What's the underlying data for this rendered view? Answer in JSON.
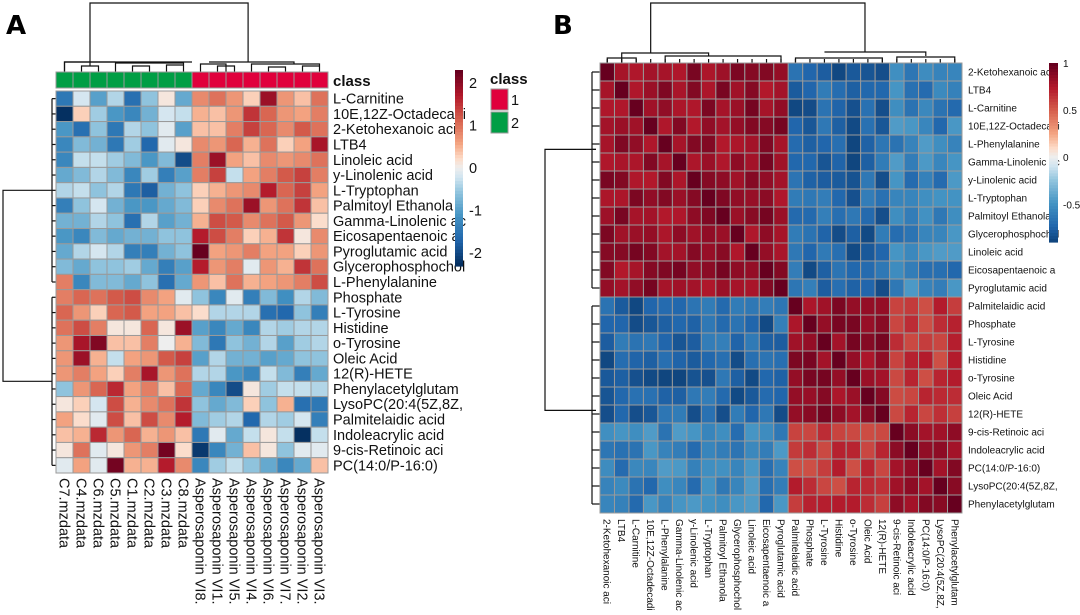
{
  "chart_data": [
    {
      "type": "heatmap",
      "panel": "A",
      "title": "",
      "row_labels": [
        "L-Carnitine",
        "10E,12Z-Octadecadi",
        "2-Ketohexanoic aci",
        "LTB4",
        "Linoleic acid",
        "y-Linolenic acid",
        "L-Tryptophan",
        "Palmitoyl Ethanola",
        "Gamma-Linolenic ac",
        "Eicosapentaenoic a",
        "Pyroglutamic acid",
        "Glycerophosphochol",
        "L-Phenylalanine",
        "Phosphate",
        "L-Tyrosine",
        "Histidine",
        "o-Tyrosine",
        "Oleic Acid",
        "12(R)-HETE",
        "Phenylacetylglutam",
        "LysoPC(20:4(5Z,8Z,",
        "Palmitelaidic acid",
        "Indoleacrylic acid",
        "9-cis-Retinoic aci",
        "PC(14:0/P-16:0)"
      ],
      "col_labels": [
        "C7.mzdata",
        "C4.mzdata",
        "C6.mzdata",
        "C5.mzdata",
        "C1.mzdata",
        "C2.mzdata",
        "C3.mzdata",
        "C8.mzdata",
        "Asperosaponin VI8.",
        "Asperosaponin VI1.",
        "Asperosaponin VI5.",
        "Asperosaponin VI4.",
        "Asperosaponin VI6.",
        "Asperosaponin VI7.",
        "Asperosaponin VI2.",
        "Asperosaponin VI3."
      ],
      "col_class": [
        2,
        2,
        2,
        2,
        2,
        2,
        2,
        2,
        1,
        1,
        1,
        1,
        1,
        1,
        1,
        1
      ],
      "class_annotation_label": "class",
      "class_legend": {
        "title": "class",
        "items": [
          {
            "label": "1",
            "color": "#e0003c"
          },
          {
            "label": "2",
            "color": "#009e45"
          }
        ]
      },
      "colorbar": {
        "ticks": [
          2,
          1,
          0,
          -1,
          -2
        ],
        "range": [
          -2.3,
          2.3
        ],
        "low_color": "#053061",
        "mid_color": "#f0f0f0",
        "high_color": "#67001f"
      },
      "values": [
        [
          -1.5,
          -0.2,
          -1.0,
          -0.4,
          -1.6,
          -0.6,
          0.1,
          -0.9,
          0.8,
          1.0,
          0.7,
          0.3,
          1.9,
          0.7,
          0.4,
          1.0
        ],
        [
          -2.3,
          0.3,
          -0.5,
          -1.1,
          -1.3,
          -0.8,
          -0.2,
          -0.3,
          0.5,
          0.4,
          0.7,
          1.5,
          1.1,
          0.7,
          0.6,
          0.9
        ],
        [
          -1.1,
          -1.6,
          -0.6,
          -1.5,
          -0.4,
          -0.6,
          -0.1,
          -1.0,
          0.4,
          0.4,
          0.9,
          1.4,
          1.1,
          0.8,
          1.2,
          1.0
        ],
        [
          -1.3,
          -0.7,
          -0.8,
          -1.5,
          -0.5,
          -1.7,
          -0.1,
          0.1,
          0.8,
          0.7,
          1.1,
          0.5,
          1.0,
          0.3,
          0.6,
          1.8
        ],
        [
          -1.3,
          -0.3,
          -0.3,
          -0.5,
          -0.7,
          -1.1,
          -0.7,
          -2.0,
          0.9,
          1.9,
          0.6,
          0.4,
          0.8,
          0.7,
          0.8,
          1.0
        ],
        [
          -0.9,
          -0.7,
          -0.4,
          -0.7,
          -1.3,
          -0.5,
          -1.4,
          -1.0,
          0.9,
          1.4,
          -0.3,
          0.6,
          0.9,
          1.2,
          1.4,
          0.9
        ],
        [
          -0.4,
          -0.3,
          -0.6,
          -0.4,
          -1.5,
          -1.8,
          -0.8,
          -0.6,
          0.3,
          0.5,
          0.7,
          0.8,
          1.7,
          1.1,
          1.4,
          0.6
        ],
        [
          -1.4,
          -0.6,
          -0.2,
          -0.8,
          -1.1,
          -1.1,
          -0.9,
          -0.7,
          0.3,
          0.8,
          1.0,
          1.9,
          0.7,
          1.0,
          1.5,
          0.4
        ],
        [
          -0.8,
          -0.8,
          -0.4,
          -0.6,
          -1.6,
          -0.4,
          -1.0,
          -0.8,
          0.5,
          1.3,
          1.2,
          0.8,
          1.0,
          1.2,
          0.7,
          0.2
        ],
        [
          -1.1,
          -1.3,
          -0.7,
          -0.9,
          -0.8,
          -0.8,
          -0.6,
          -0.6,
          1.7,
          1.3,
          0.9,
          0.3,
          0.5,
          1.5,
          0.1,
          0.8
        ],
        [
          -0.9,
          -0.4,
          -0.2,
          -0.4,
          -1.4,
          -1.4,
          -0.8,
          -0.6,
          2.3,
          0.6,
          0.7,
          0.9,
          0.6,
          0.6,
          0.3,
          0.7
        ],
        [
          -0.7,
          -0.9,
          -0.6,
          -0.6,
          -0.5,
          -0.9,
          -1.4,
          -1.0,
          1.7,
          0.7,
          0.9,
          -0.1,
          0.7,
          0.5,
          1.5,
          1.0
        ],
        [
          0.9,
          -1.3,
          -0.7,
          -0.7,
          -0.9,
          -0.6,
          -1.6,
          -0.9,
          0.7,
          0.4,
          1.0,
          0.5,
          0.6,
          0.7,
          0.9,
          1.3
        ],
        [
          0.9,
          1.1,
          1.0,
          1.2,
          1.3,
          0.8,
          0.6,
          -0.1,
          -0.6,
          -1.3,
          -0.1,
          -1.4,
          -0.7,
          -1.2,
          -0.4,
          -0.7
        ],
        [
          1.1,
          0.7,
          0.3,
          1.1,
          1.2,
          0.6,
          0.6,
          0.4,
          0.2,
          -0.4,
          -0.4,
          -0.4,
          -1.6,
          -1.7,
          -0.6,
          -1.4
        ],
        [
          1.0,
          1.3,
          0.9,
          0.1,
          0.1,
          1.1,
          0.1,
          1.9,
          -1.0,
          -1.3,
          -0.9,
          -1.3,
          -0.4,
          -0.5,
          -0.4,
          -0.4
        ],
        [
          0.7,
          1.8,
          2.1,
          0.4,
          0.4,
          0.9,
          0.0,
          0.5,
          -0.7,
          -1.5,
          -0.6,
          -0.8,
          -0.4,
          -1.0,
          -0.5,
          -0.4
        ],
        [
          0.7,
          1.9,
          0.5,
          -0.3,
          0.6,
          0.7,
          1.2,
          1.4,
          -1.0,
          -0.4,
          -0.8,
          -0.8,
          -1.0,
          -0.9,
          -0.6,
          -0.6
        ],
        [
          0.7,
          0.9,
          0.6,
          0.3,
          0.9,
          1.8,
          0.7,
          1.0,
          -0.4,
          -0.4,
          -1.1,
          -1.3,
          -0.3,
          -0.7,
          -1.4,
          -0.9
        ],
        [
          -0.6,
          0.7,
          1.1,
          1.6,
          0.6,
          0.9,
          0.4,
          1.1,
          -0.9,
          -1.3,
          -2.0,
          0.1,
          -0.5,
          -0.3,
          -0.3,
          -0.4
        ],
        [
          0.1,
          0.3,
          -0.2,
          1.3,
          0.5,
          0.8,
          1.0,
          1.5,
          -0.6,
          -0.9,
          -0.7,
          0.3,
          -0.6,
          0.5,
          -1.6,
          -1.5
        ],
        [
          0.6,
          0.2,
          -0.1,
          1.3,
          0.4,
          1.3,
          0.8,
          1.7,
          -0.7,
          -0.5,
          -0.4,
          -1.7,
          -0.4,
          -0.5,
          -0.2,
          -1.4
        ],
        [
          0.4,
          0.5,
          1.6,
          0.7,
          1.1,
          0.5,
          0.7,
          0.4,
          -1.5,
          -0.1,
          -0.9,
          -0.3,
          0.1,
          -0.3,
          -2.3,
          -0.3
        ],
        [
          0.1,
          1.0,
          -0.1,
          0.1,
          0.7,
          0.9,
          2.2,
          0.2,
          -2.2,
          -1.3,
          -0.8,
          0.4,
          0.1,
          -0.6,
          -0.1,
          -0.1
        ],
        [
          -0.1,
          0.6,
          -0.1,
          2.2,
          0.5,
          0.5,
          1.7,
          0.8,
          -1.3,
          -0.5,
          -0.3,
          -0.6,
          -0.9,
          -1.3,
          -0.9,
          0.4
        ]
      ]
    },
    {
      "type": "heatmap",
      "panel": "B",
      "title": "",
      "row_labels": [
        "2-Ketohexanoic aci",
        "LTB4",
        "L-Carnitine",
        "10E,12Z-Octadecadi",
        "L-Phenylalanine",
        "Gamma-Linolenic ac",
        "y-Linolenic acid",
        "L-Tryptophan",
        "Palmitoyl Ethanola",
        "Glycerophosphochol",
        "Linoleic acid",
        "Eicosapentaenoic a",
        "Pyroglutamic acid",
        "Palmitelaidic acid",
        "Phosphate",
        "L-Tyrosine",
        "Histidine",
        "o-Tyrosine",
        "Oleic Acid",
        "12(R)-HETE",
        "9-cis-Retinoic aci",
        "Indoleacrylic acid",
        "PC(14:0/P-16:0)",
        "LysoPC(20:4(5Z,8Z,",
        "Phenylacetylglutam"
      ],
      "col_labels": [
        "2-Ketohexanoic aci",
        "LTB4",
        "L-Carnitine",
        "10E,12Z-Octadecadi",
        "L-Phenylalanine",
        "Gamma-Linolenic ac",
        "y-Linolenic acid",
        "L-Tryptophan",
        "Palmitoyl Ethanola",
        "Glycerophosphochol",
        "Linoleic acid",
        "Eicosapentaenoic a",
        "Pyroglutamic acid",
        "Palmitelaidic acid",
        "Phosphate",
        "L-Tyrosine",
        "Histidine",
        "o-Tyrosine",
        "Oleic Acid",
        "12(R)-HETE",
        "9-cis-Retinoic aci",
        "Indoleacrylic acid",
        "PC(14:0/P-16:0)",
        "LysoPC(20:4(5Z,8Z,",
        "Phenylacetylglutam"
      ],
      "colorbar": {
        "ticks": [
          1,
          0.5,
          0,
          -0.5
        ],
        "range": [
          -0.9,
          1
        ],
        "low_color": "#053061",
        "mid_color": "#f0f0f0",
        "high_color": "#67001f"
      },
      "group_split": 13
    }
  ],
  "panels": {
    "a_letter": "A",
    "b_letter": "B"
  }
}
